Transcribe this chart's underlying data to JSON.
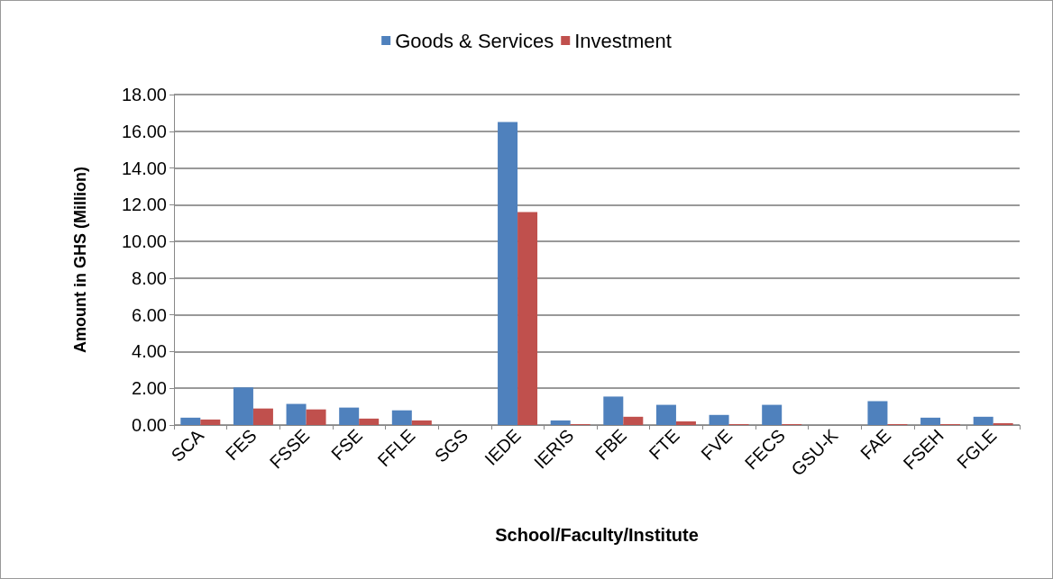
{
  "chart_data": {
    "type": "bar",
    "xlabel": "School/Faculty/Institute",
    "ylabel": "Amount in GHS (Million)",
    "categories": [
      "SCA",
      "FES",
      "FSSE",
      "FSE",
      "FFLE",
      "SGS",
      "IEDE",
      "IERIS",
      "FBE",
      "FTE",
      "FVE",
      "FECS",
      "GSU-K",
      "FAE",
      "FSEH",
      "FGLE"
    ],
    "series": [
      {
        "name": "Goods & Services",
        "color": "#4f81bd",
        "values": [
          0.4,
          2.05,
          1.15,
          0.95,
          0.8,
          0,
          16.5,
          0.25,
          1.55,
          1.1,
          0.55,
          1.1,
          0,
          1.3,
          0.4,
          0.45
        ]
      },
      {
        "name": "Investment",
        "color": "#c0504d",
        "values": [
          0.3,
          0.9,
          0.85,
          0.35,
          0.25,
          0,
          11.6,
          0.05,
          0.45,
          0.2,
          0.05,
          0.05,
          0,
          0.05,
          0.05,
          0.1
        ]
      }
    ],
    "ylim": [
      0,
      18
    ],
    "yticks": [
      {
        "value": 0,
        "label": "0.00"
      },
      {
        "value": 2,
        "label": "2.00"
      },
      {
        "value": 4,
        "label": "4.00"
      },
      {
        "value": 6,
        "label": "6.00"
      },
      {
        "value": 8,
        "label": "8.00"
      },
      {
        "value": 10,
        "label": "10.00"
      },
      {
        "value": 12,
        "label": "12.00"
      },
      {
        "value": 14,
        "label": "14.00"
      },
      {
        "value": 16,
        "label": "16.00"
      },
      {
        "value": 18,
        "label": "18.00"
      }
    ],
    "grid": "y",
    "legend": "top"
  }
}
